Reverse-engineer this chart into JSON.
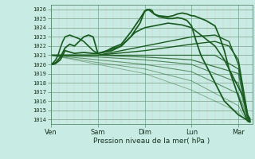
{
  "xlabel": "Pression niveau de la mer( hPa )",
  "yticks": [
    1014,
    1015,
    1016,
    1017,
    1018,
    1019,
    1020,
    1021,
    1022,
    1023,
    1024,
    1025,
    1026
  ],
  "xtick_labels": [
    "Ven",
    "Sam",
    "Dim",
    "Lun",
    "Mar"
  ],
  "xtick_positions": [
    0,
    1,
    2,
    3,
    4
  ],
  "ylim": [
    1013.5,
    1026.5
  ],
  "xlim": [
    0.0,
    4.3
  ],
  "background_color": "#c8ece4",
  "plot_bg_color": "#c8ece4",
  "line_color": "#1a5c20",
  "lines": [
    {
      "x": [
        0.0,
        0.05,
        0.1,
        0.15,
        0.2,
        0.3,
        0.5,
        0.7,
        0.9,
        1.0,
        1.1,
        1.3,
        1.5,
        1.7,
        1.9,
        2.0,
        2.05,
        2.1,
        2.15,
        2.2,
        2.3,
        2.5,
        2.6,
        2.7,
        2.8,
        2.9,
        3.0,
        3.05,
        3.1,
        3.2,
        3.3,
        3.4,
        3.5,
        3.6,
        3.7,
        3.8,
        3.9,
        4.0,
        4.1,
        4.2,
        4.25
      ],
      "y": [
        1020.0,
        1020.0,
        1020.1,
        1020.3,
        1020.5,
        1021.5,
        1021.2,
        1021.3,
        1021.2,
        1021.2,
        1021.3,
        1021.5,
        1022.0,
        1023.0,
        1024.5,
        1025.8,
        1025.9,
        1026.0,
        1025.9,
        1025.5,
        1025.3,
        1025.2,
        1025.3,
        1025.5,
        1025.6,
        1025.5,
        1025.3,
        1025.3,
        1025.2,
        1025.0,
        1024.8,
        1024.5,
        1024.2,
        1023.0,
        1021.5,
        1019.5,
        1018.0,
        1016.5,
        1015.0,
        1013.8,
        1013.7
      ],
      "lw": 1.3,
      "alpha": 1.0
    },
    {
      "x": [
        0.0,
        0.05,
        0.1,
        0.15,
        0.2,
        0.3,
        0.4,
        0.5,
        0.6,
        0.7,
        0.8,
        0.9,
        1.0,
        1.1,
        1.2,
        1.3,
        1.5,
        1.7,
        1.9,
        2.0,
        2.05,
        2.1,
        2.2,
        2.3,
        2.5,
        2.6,
        2.7,
        2.8,
        2.9,
        3.0,
        3.1,
        3.2,
        3.4,
        3.5,
        3.6,
        3.7,
        3.8,
        3.9,
        4.0,
        4.1,
        4.2,
        4.25
      ],
      "y": [
        1020.0,
        1020.1,
        1020.2,
        1020.5,
        1020.8,
        1021.8,
        1022.2,
        1022.0,
        1022.5,
        1023.0,
        1023.2,
        1023.0,
        1021.2,
        1021.3,
        1021.5,
        1021.8,
        1022.2,
        1023.5,
        1025.0,
        1025.8,
        1026.0,
        1025.9,
        1025.5,
        1025.2,
        1025.0,
        1025.0,
        1025.1,
        1025.0,
        1024.8,
        1024.2,
        1022.5,
        1021.0,
        1019.0,
        1018.0,
        1017.0,
        1016.0,
        1015.5,
        1015.0,
        1014.5,
        1014.2,
        1013.9,
        1013.8
      ],
      "lw": 1.3,
      "alpha": 1.0
    },
    {
      "x": [
        0.0,
        0.05,
        0.1,
        0.15,
        0.2,
        0.25,
        0.3,
        0.4,
        0.5,
        0.6,
        0.7,
        0.8,
        0.9,
        1.0,
        1.2,
        1.5,
        1.8,
        2.0,
        2.2,
        2.5,
        2.8,
        3.0,
        3.2,
        3.5,
        3.7,
        3.9,
        4.0,
        4.1,
        4.2,
        4.25
      ],
      "y": [
        1020.0,
        1020.2,
        1020.5,
        1021.0,
        1021.8,
        1022.5,
        1023.0,
        1023.2,
        1023.0,
        1022.8,
        1022.5,
        1022.0,
        1021.5,
        1021.2,
        1021.5,
        1022.0,
        1023.5,
        1024.0,
        1024.2,
        1024.5,
        1024.3,
        1024.0,
        1023.2,
        1022.0,
        1020.5,
        1018.5,
        1017.5,
        1016.5,
        1014.2,
        1013.8
      ],
      "lw": 1.2,
      "alpha": 1.0
    },
    {
      "x": [
        0.0,
        1.0,
        2.0,
        3.0,
        3.5,
        3.8,
        4.0,
        4.1,
        4.2,
        4.25
      ],
      "y": [
        1021.0,
        1021.0,
        1022.0,
        1023.0,
        1023.2,
        1022.5,
        1020.0,
        1017.0,
        1014.2,
        1013.9
      ],
      "lw": 1.0,
      "alpha": 1.0
    },
    {
      "x": [
        0.0,
        1.0,
        2.0,
        3.0,
        3.5,
        3.8,
        4.0,
        4.1,
        4.2,
        4.25
      ],
      "y": [
        1021.0,
        1021.0,
        1021.5,
        1022.2,
        1022.5,
        1022.0,
        1020.5,
        1017.5,
        1014.5,
        1014.0
      ],
      "lw": 1.0,
      "alpha": 1.0
    },
    {
      "x": [
        0.0,
        1.0,
        2.0,
        3.0,
        3.5,
        4.0,
        4.1,
        4.2,
        4.25
      ],
      "y": [
        1021.0,
        1021.0,
        1021.0,
        1021.0,
        1021.0,
        1019.5,
        1017.0,
        1014.5,
        1014.1
      ],
      "lw": 0.9,
      "alpha": 0.85
    },
    {
      "x": [
        0.0,
        1.0,
        2.0,
        3.0,
        4.0,
        4.1,
        4.2,
        4.25
      ],
      "y": [
        1021.0,
        1021.0,
        1020.8,
        1020.5,
        1019.0,
        1016.5,
        1014.3,
        1014.1
      ],
      "lw": 0.9,
      "alpha": 0.8
    },
    {
      "x": [
        0.0,
        1.0,
        2.0,
        3.0,
        4.0,
        4.1,
        4.2,
        4.25
      ],
      "y": [
        1021.0,
        1020.8,
        1020.5,
        1020.0,
        1018.0,
        1016.0,
        1014.2,
        1014.0
      ],
      "lw": 0.8,
      "alpha": 0.7
    },
    {
      "x": [
        0.0,
        1.0,
        2.0,
        3.0,
        4.0,
        4.1,
        4.2,
        4.25
      ],
      "y": [
        1021.0,
        1020.5,
        1020.0,
        1019.2,
        1016.8,
        1015.5,
        1014.0,
        1013.9
      ],
      "lw": 0.8,
      "alpha": 0.6
    },
    {
      "x": [
        0.0,
        1.0,
        2.0,
        3.0,
        4.0,
        4.1,
        4.2,
        4.25
      ],
      "y": [
        1021.0,
        1020.2,
        1019.5,
        1018.2,
        1015.5,
        1014.5,
        1013.9,
        1013.8
      ],
      "lw": 0.7,
      "alpha": 0.5
    },
    {
      "x": [
        0.0,
        1.0,
        2.0,
        3.0,
        4.0,
        4.1,
        4.2,
        4.25
      ],
      "y": [
        1021.0,
        1020.0,
        1019.0,
        1017.2,
        1014.8,
        1014.2,
        1013.8,
        1013.7
      ],
      "lw": 0.7,
      "alpha": 0.4
    }
  ]
}
